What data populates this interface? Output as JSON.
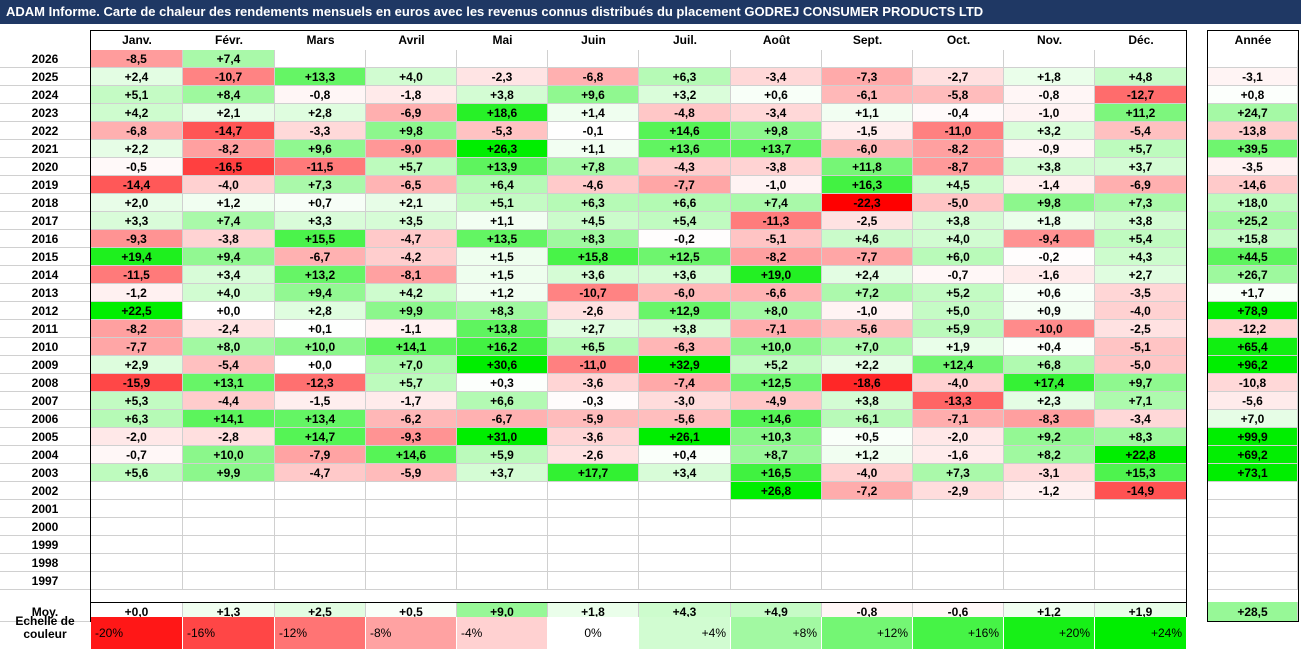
{
  "title": "ADAM Informe. Carte de chaleur des rendements mensuels en euros avec les revenus connus distribués du placement GODREJ CONSUMER PRODUCTS LTD",
  "colors": {
    "title_bg": "#1f3864",
    "neg_max": "#ff0000",
    "pos_max": "#00ee00",
    "zero": "#ffffff"
  },
  "chart_data": {
    "type": "heatmap",
    "months": [
      "Janv.",
      "Févr.",
      "Mars",
      "Avril",
      "Mai",
      "Juin",
      "Juil.",
      "Août",
      "Sept.",
      "Oct.",
      "Nov.",
      "Déc."
    ],
    "year_header": "Année",
    "avg_label": "Moy.",
    "rows": [
      {
        "year": "2026",
        "m": [
          "-8,5",
          "+7,4",
          "",
          "",
          "",
          "",
          "",
          "",
          "",
          "",
          "",
          ""
        ],
        "y": ""
      },
      {
        "year": "2025",
        "m": [
          "+2,4",
          "-10,7",
          "+13,3",
          "+4,0",
          "-2,3",
          "-6,8",
          "+6,3",
          "-3,4",
          "-7,3",
          "-2,7",
          "+1,8",
          "+4,8"
        ],
        "y": "-3,1"
      },
      {
        "year": "2024",
        "m": [
          "+5,1",
          "+8,4",
          "-0,8",
          "-1,8",
          "+3,8",
          "+9,6",
          "+3,2",
          "+0,6",
          "-6,1",
          "-5,8",
          "-0,8",
          "-12,7"
        ],
        "y": "+0,8"
      },
      {
        "year": "2023",
        "m": [
          "+4,2",
          "+2,1",
          "+2,8",
          "-6,9",
          "+18,6",
          "+1,4",
          "-4,8",
          "-3,4",
          "+1,1",
          "-0,4",
          "-1,0",
          "+11,2"
        ],
        "y": "+24,7"
      },
      {
        "year": "2022",
        "m": [
          "-6,8",
          "-14,7",
          "-3,3",
          "+9,8",
          "-5,3",
          "-0,1",
          "+14,6",
          "+9,8",
          "-1,5",
          "-11,0",
          "+3,2",
          "-5,4"
        ],
        "y": "-13,8"
      },
      {
        "year": "2021",
        "m": [
          "+2,2",
          "-8,2",
          "+9,6",
          "-9,0",
          "+26,3",
          "+1,1",
          "+13,6",
          "+13,7",
          "-6,0",
          "-8,2",
          "-0,9",
          "+5,7"
        ],
        "y": "+39,5"
      },
      {
        "year": "2020",
        "m": [
          "-0,5",
          "-16,5",
          "-11,5",
          "+5,7",
          "+13,9",
          "+7,8",
          "-4,3",
          "-3,8",
          "+11,8",
          "-8,7",
          "+3,8",
          "+3,7"
        ],
        "y": "-3,5"
      },
      {
        "year": "2019",
        "m": [
          "-14,4",
          "-4,0",
          "+7,3",
          "-6,5",
          "+6,4",
          "-4,6",
          "-7,7",
          "-1,0",
          "+16,3",
          "+4,5",
          "-1,4",
          "-6,9"
        ],
        "y": "-14,6"
      },
      {
        "year": "2018",
        "m": [
          "+2,0",
          "+1,2",
          "+0,7",
          "+2,1",
          "+5,1",
          "+6,3",
          "+6,6",
          "+7,4",
          "-22,3",
          "-5,0",
          "+9,8",
          "+7,3"
        ],
        "y": "+18,0"
      },
      {
        "year": "2017",
        "m": [
          "+3,3",
          "+7,4",
          "+3,3",
          "+3,5",
          "+1,1",
          "+4,5",
          "+5,4",
          "-11,3",
          "-2,5",
          "+3,8",
          "+1,8",
          "+3,8"
        ],
        "y": "+25,2"
      },
      {
        "year": "2016",
        "m": [
          "-9,3",
          "-3,8",
          "+15,5",
          "-4,7",
          "+13,5",
          "+8,3",
          "-0,2",
          "-5,1",
          "+4,6",
          "+4,0",
          "-9,4",
          "+5,4"
        ],
        "y": "+15,8"
      },
      {
        "year": "2015",
        "m": [
          "+19,4",
          "+9,4",
          "-6,7",
          "-4,2",
          "+1,5",
          "+15,8",
          "+12,5",
          "-8,2",
          "-7,7",
          "+6,0",
          "-0,2",
          "+4,3"
        ],
        "y": "+44,5"
      },
      {
        "year": "2014",
        "m": [
          "-11,5",
          "+3,4",
          "+13,2",
          "-8,1",
          "+1,5",
          "+3,6",
          "+3,6",
          "+19,0",
          "+2,4",
          "-0,7",
          "-1,6",
          "+2,7"
        ],
        "y": "+26,7"
      },
      {
        "year": "2013",
        "m": [
          "-1,2",
          "+4,0",
          "+9,4",
          "+4,2",
          "+1,2",
          "-10,7",
          "-6,0",
          "-6,6",
          "+7,2",
          "+5,2",
          "+0,6",
          "-3,5"
        ],
        "y": "+1,7"
      },
      {
        "year": "2012",
        "m": [
          "+22,5",
          "+0,0",
          "+2,8",
          "+9,9",
          "+8,3",
          "-2,6",
          "+12,9",
          "+8,0",
          "-1,0",
          "+5,0",
          "+0,9",
          "-4,0"
        ],
        "y": "+78,9"
      },
      {
        "year": "2011",
        "m": [
          "-8,2",
          "-2,4",
          "+0,1",
          "-1,1",
          "+13,8",
          "+2,7",
          "+3,8",
          "-7,1",
          "-5,6",
          "+5,9",
          "-10,0",
          "-2,5"
        ],
        "y": "-12,2"
      },
      {
        "year": "2010",
        "m": [
          "-7,7",
          "+8,0",
          "+10,0",
          "+14,1",
          "+16,2",
          "+6,5",
          "-6,3",
          "+10,0",
          "+7,0",
          "+1,9",
          "+0,4",
          "-5,1"
        ],
        "y": "+65,4"
      },
      {
        "year": "2009",
        "m": [
          "+2,9",
          "-5,4",
          "+0,0",
          "+7,0",
          "+30,6",
          "-11,0",
          "+32,9",
          "+5,2",
          "+2,2",
          "+12,4",
          "+6,8",
          "-5,0"
        ],
        "y": "+96,2"
      },
      {
        "year": "2008",
        "m": [
          "-15,9",
          "+13,1",
          "-12,3",
          "+5,7",
          "+0,3",
          "-3,6",
          "-7,4",
          "+12,5",
          "-18,6",
          "-4,0",
          "+17,4",
          "+9,7"
        ],
        "y": "-10,8"
      },
      {
        "year": "2007",
        "m": [
          "+5,3",
          "-4,4",
          "-1,5",
          "-1,7",
          "+6,6",
          "-0,3",
          "-3,0",
          "-4,9",
          "+3,8",
          "-13,3",
          "+2,3",
          "+7,1"
        ],
        "y": "-5,6"
      },
      {
        "year": "2006",
        "m": [
          "+6,3",
          "+14,1",
          "+13,4",
          "-6,2",
          "-6,7",
          "-5,9",
          "-5,6",
          "+14,6",
          "+6,1",
          "-7,1",
          "-8,3",
          "-3,4"
        ],
        "y": "+7,0"
      },
      {
        "year": "2005",
        "m": [
          "-2,0",
          "-2,8",
          "+14,7",
          "-9,3",
          "+31,0",
          "-3,6",
          "+26,1",
          "+10,3",
          "+0,5",
          "-2,0",
          "+9,2",
          "+8,3"
        ],
        "y": "+99,9"
      },
      {
        "year": "2004",
        "m": [
          "-0,7",
          "+10,0",
          "-7,9",
          "+14,6",
          "+5,9",
          "-2,6",
          "+0,4",
          "+8,7",
          "+1,2",
          "-1,6",
          "+8,2",
          "+22,8"
        ],
        "y": "+69,2"
      },
      {
        "year": "2003",
        "m": [
          "+5,6",
          "+9,9",
          "-4,7",
          "-5,9",
          "+3,7",
          "+17,7",
          "+3,4",
          "+16,5",
          "-4,0",
          "+7,3",
          "-3,1",
          "+15,3"
        ],
        "y": "+73,1"
      },
      {
        "year": "2002",
        "m": [
          "",
          "",
          "",
          "",
          "",
          "",
          "",
          "+26,8",
          "-7,2",
          "-2,9",
          "-1,2",
          "-14,9"
        ],
        "y": ""
      },
      {
        "year": "2001",
        "m": [
          "",
          "",
          "",
          "",
          "",
          "",
          "",
          "",
          "",
          "",
          "",
          ""
        ],
        "y": ""
      },
      {
        "year": "2000",
        "m": [
          "",
          "",
          "",
          "",
          "",
          "",
          "",
          "",
          "",
          "",
          "",
          ""
        ],
        "y": ""
      },
      {
        "year": "1999",
        "m": [
          "",
          "",
          "",
          "",
          "",
          "",
          "",
          "",
          "",
          "",
          "",
          ""
        ],
        "y": ""
      },
      {
        "year": "1998",
        "m": [
          "",
          "",
          "",
          "",
          "",
          "",
          "",
          "",
          "",
          "",
          "",
          ""
        ],
        "y": ""
      },
      {
        "year": "1997",
        "m": [
          "",
          "",
          "",
          "",
          "",
          "",
          "",
          "",
          "",
          "",
          "",
          ""
        ],
        "y": ""
      }
    ],
    "averages": {
      "m": [
        "+0,0",
        "+1,3",
        "+2,5",
        "+0,5",
        "+9,0",
        "+1,8",
        "+4,3",
        "+4,9",
        "-0,8",
        "-0,6",
        "+1,2",
        "+1,9"
      ],
      "y": "+28,5"
    },
    "scale_label": "Echelle de couleur",
    "scale": [
      "-20%",
      "-16%",
      "-12%",
      "-8%",
      "-4%",
      "0%",
      "+4%",
      "+8%",
      "+12%",
      "+16%",
      "+20%",
      "+24%"
    ]
  }
}
